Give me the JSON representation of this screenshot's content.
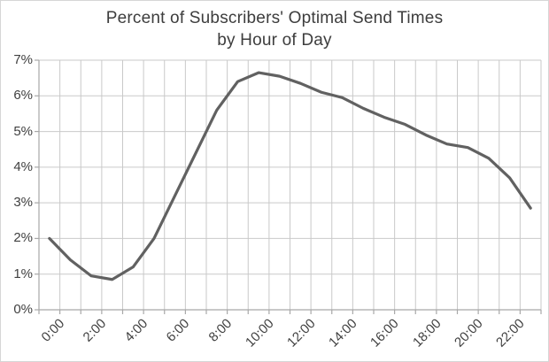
{
  "chart_data": {
    "type": "line",
    "title": "Percent of Subscribers' Optimal Send Times by Hour of Day",
    "title_lines": [
      "Percent of Subscribers' Optimal Send Times",
      "by Hour of Day"
    ],
    "categories": [
      "0:00",
      "1:00",
      "2:00",
      "3:00",
      "4:00",
      "5:00",
      "6:00",
      "7:00",
      "8:00",
      "9:00",
      "10:00",
      "11:00",
      "12:00",
      "13:00",
      "14:00",
      "15:00",
      "16:00",
      "17:00",
      "18:00",
      "19:00",
      "20:00",
      "21:00",
      "22:00",
      "23:00"
    ],
    "values": [
      2.0,
      1.4,
      0.95,
      0.85,
      1.2,
      2.0,
      3.2,
      4.4,
      5.6,
      6.4,
      6.65,
      6.55,
      6.35,
      6.1,
      5.95,
      5.65,
      5.4,
      5.2,
      4.9,
      4.65,
      4.55,
      4.25,
      3.7,
      2.85
    ],
    "x_tick_labels": [
      "0:00",
      "2:00",
      "4:00",
      "6:00",
      "8:00",
      "10:00",
      "12:00",
      "14:00",
      "16:00",
      "18:00",
      "20:00",
      "22:00"
    ],
    "y_tick_labels": [
      "0%",
      "1%",
      "2%",
      "3%",
      "4%",
      "5%",
      "6%",
      "7%"
    ],
    "ylim": [
      0,
      7
    ],
    "xlabel": "",
    "ylabel": "",
    "grid": "both",
    "legend": "none",
    "colors": {
      "line": "#616161",
      "grid": "#c9c9c9",
      "axis": "#a8a8a8",
      "text": "#404040",
      "title_text": "#3d3d3d",
      "background": "#ffffff"
    }
  }
}
